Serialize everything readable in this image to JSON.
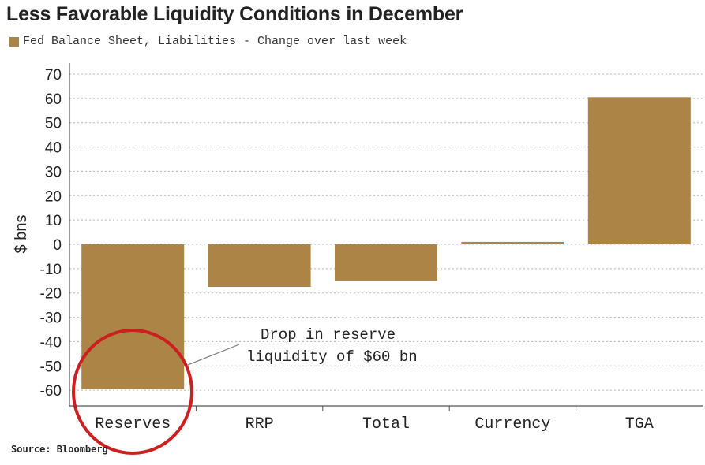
{
  "chart_data": {
    "type": "bar",
    "title": "Less Favorable Liquidity Conditions in December",
    "legend": [
      "Fed Balance Sheet, Liabilities - Change over last week"
    ],
    "categories": [
      "Reserves",
      "RRP",
      "Total",
      "Currency",
      "TGA"
    ],
    "series": [
      {
        "name": "Fed Balance Sheet, Liabilities - Change over last week",
        "values": [
          -59.5,
          -17.5,
          -15,
          1,
          60.5
        ]
      }
    ],
    "xlabel": "",
    "ylabel": "$ bns",
    "ylim": [
      -65,
      70
    ],
    "yticks": [
      70,
      60,
      50,
      40,
      30,
      20,
      10,
      0,
      -10,
      -20,
      -30,
      -40,
      -50,
      -60
    ],
    "grid": true,
    "legend_position": "top-left",
    "annotations": [
      {
        "text_lines": [
          "Drop in reserve",
          "liquidity of $60 bn"
        ],
        "target": "Reserves"
      }
    ],
    "source": "Source: Bloomberg",
    "bar_color": "#ab8446",
    "highlight_circle_color": "#cc1f1f"
  }
}
